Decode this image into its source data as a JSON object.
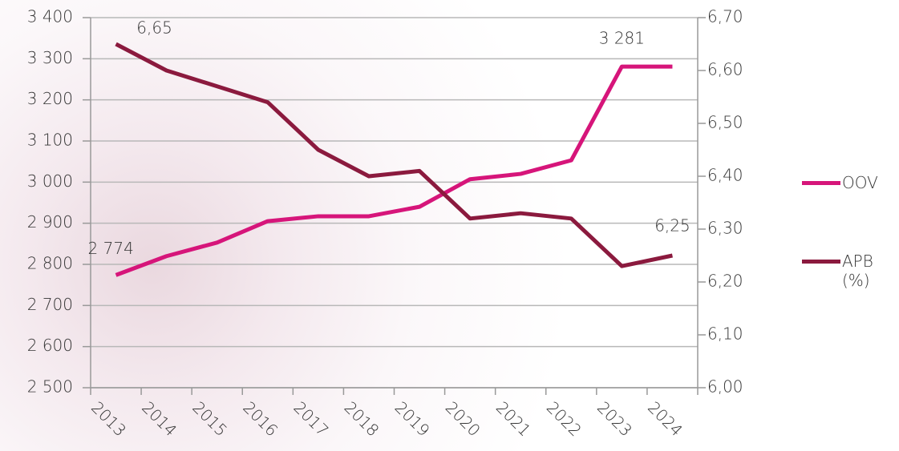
{
  "chart_data": {
    "type": "line",
    "categories": [
      "2013",
      "2014",
      "2015",
      "2016",
      "2017",
      "2018",
      "2019",
      "2020",
      "2021",
      "2022",
      "2023",
      "2024"
    ],
    "series": [
      {
        "name": "OOV",
        "color": "#d6157a",
        "axis": "y",
        "values": [
          2774,
          2820,
          2853,
          2905,
          2917,
          2917,
          2940,
          3007,
          3020,
          3053,
          3281,
          3281
        ],
        "value_labels": [
          "2 774",
          null,
          null,
          null,
          null,
          null,
          null,
          null,
          null,
          null,
          "3 281",
          null
        ]
      },
      {
        "name": "APB (%)",
        "color": "#8b1a3e",
        "axis": "y2",
        "values": [
          6.65,
          6.6,
          6.57,
          6.54,
          6.45,
          6.4,
          6.41,
          6.32,
          6.33,
          6.32,
          6.23,
          6.25
        ],
        "value_labels": [
          "6,65",
          null,
          null,
          null,
          null,
          null,
          null,
          null,
          null,
          null,
          null,
          "6,25"
        ]
      }
    ],
    "ylim": [
      2500,
      3400
    ],
    "yticks": [
      {
        "value": 2500,
        "label": "2 500"
      },
      {
        "value": 2600,
        "label": "2 600"
      },
      {
        "value": 2700,
        "label": "2 700"
      },
      {
        "value": 2800,
        "label": "2 800"
      },
      {
        "value": 2900,
        "label": "2 900"
      },
      {
        "value": 3000,
        "label": "3 000"
      },
      {
        "value": 3100,
        "label": "3 100"
      },
      {
        "value": 3200,
        "label": "3 200"
      },
      {
        "value": 3300,
        "label": "3 300"
      },
      {
        "value": 3400,
        "label": "3 400"
      }
    ],
    "y2lim": [
      6.0,
      6.7
    ],
    "y2ticks": [
      {
        "value": 6.0,
        "label": "6,00"
      },
      {
        "value": 6.1,
        "label": "6,10"
      },
      {
        "value": 6.2,
        "label": "6,20"
      },
      {
        "value": 6.3,
        "label": "6,30"
      },
      {
        "value": 6.4,
        "label": "6,40"
      },
      {
        "value": 6.5,
        "label": "6,50"
      },
      {
        "value": 6.6,
        "label": "6,60"
      },
      {
        "value": 6.7,
        "label": "6,70"
      }
    ],
    "grid": true
  }
}
